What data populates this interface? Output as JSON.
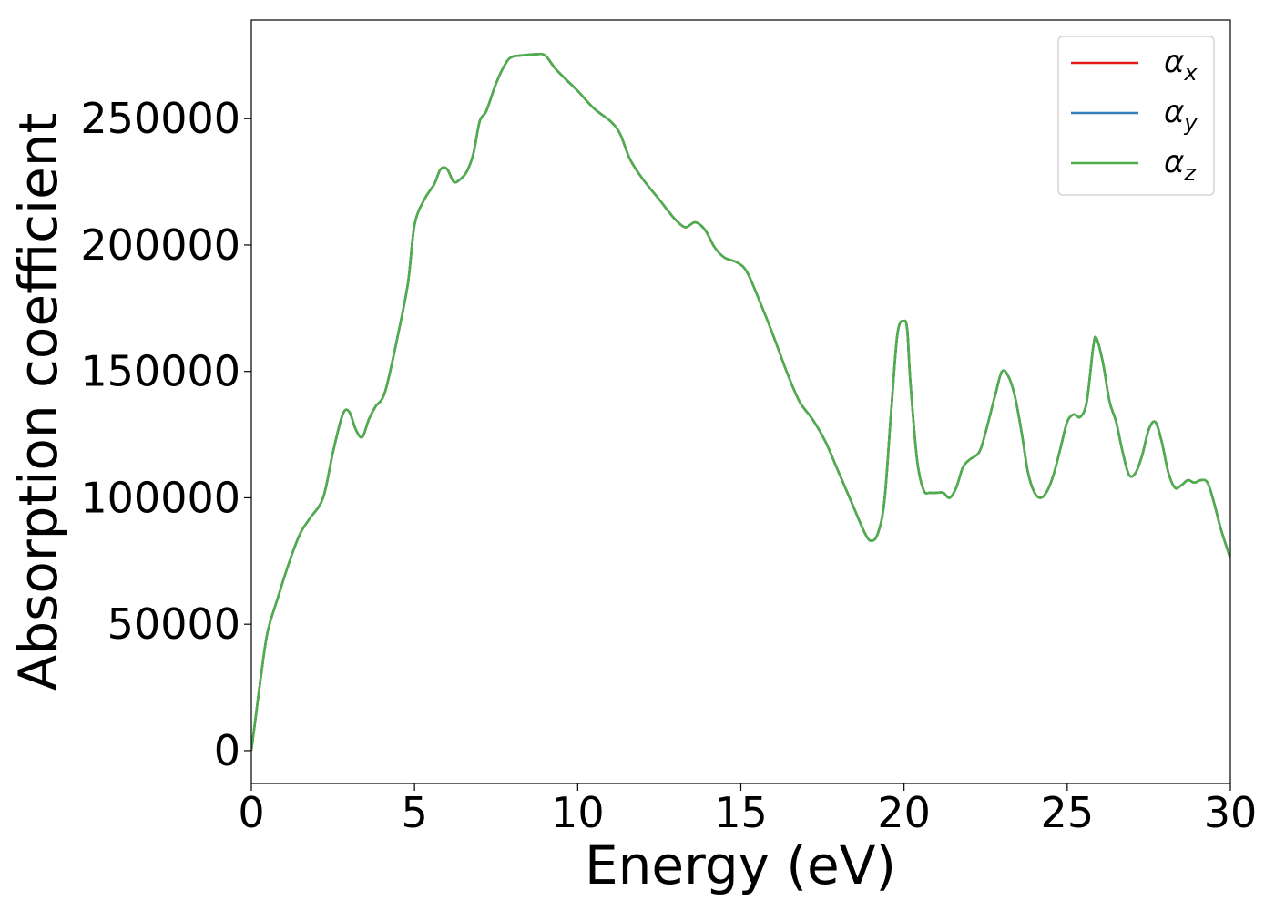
{
  "chart_data": {
    "type": "line",
    "title": "",
    "xlabel": "Energy (eV)",
    "ylabel": "Absorption coefficient",
    "xlim": [
      0,
      30
    ],
    "ylim": [
      -13000,
      289000
    ],
    "xticks": [
      0,
      5,
      10,
      15,
      20,
      25,
      30
    ],
    "xtick_labels": [
      "0",
      "5",
      "10",
      "15",
      "20",
      "25",
      "30"
    ],
    "yticks": [
      0,
      50000,
      100000,
      150000,
      200000,
      250000
    ],
    "ytick_labels": [
      "0",
      "50000",
      "100000",
      "150000",
      "200000",
      "250000"
    ],
    "grid": false,
    "legend_position": "top-right",
    "x": [
      0,
      0.1,
      0.3,
      0.5,
      0.8,
      1.2,
      1.5,
      1.8,
      2.2,
      2.5,
      2.8,
      3.0,
      3.2,
      3.4,
      3.6,
      3.8,
      4.1,
      4.5,
      4.8,
      5.0,
      5.3,
      5.6,
      5.8,
      6.0,
      6.2,
      6.4,
      6.6,
      6.8,
      7.0,
      7.2,
      7.5,
      7.8,
      8.0,
      8.3,
      8.7,
      9.0,
      9.3,
      9.6,
      10.0,
      10.5,
      11.0,
      11.3,
      11.6,
      12.0,
      12.5,
      12.8,
      13.0,
      13.3,
      13.6,
      13.9,
      14.2,
      14.5,
      14.9,
      15.2,
      15.6,
      16.0,
      16.4,
      16.8,
      17.2,
      17.6,
      18.0,
      18.4,
      18.8,
      19.0,
      19.2,
      19.4,
      19.6,
      19.8,
      20.0,
      20.1,
      20.2,
      20.4,
      20.6,
      20.8,
      21.0,
      21.2,
      21.4,
      21.6,
      21.8,
      22.0,
      22.3,
      22.5,
      22.8,
      23.0,
      23.2,
      23.4,
      23.6,
      23.8,
      24.0,
      24.2,
      24.4,
      24.6,
      24.8,
      25.0,
      25.2,
      25.4,
      25.6,
      25.8,
      25.9,
      26.1,
      26.3,
      26.5,
      26.7,
      26.9,
      27.1,
      27.3,
      27.5,
      27.7,
      27.9,
      28.1,
      28.3,
      28.5,
      28.7,
      28.9,
      29.1,
      29.3,
      29.5,
      29.7,
      30.0
    ],
    "series": [
      {
        "name": "αx",
        "label_base": "α",
        "label_sub": "x",
        "color": "#e41a1c",
        "values": [
          0,
          10000,
          30000,
          47000,
          60000,
          76000,
          86000,
          92000,
          100000,
          118000,
          133000,
          134000,
          127000,
          124000,
          131000,
          136000,
          142000,
          165000,
          185000,
          208000,
          218000,
          224000,
          230000,
          230000,
          225000,
          226000,
          229000,
          236000,
          249000,
          253000,
          264000,
          272000,
          274500,
          275000,
          275500,
          275000,
          270000,
          266000,
          261000,
          254000,
          249000,
          244000,
          234000,
          226000,
          218000,
          213000,
          210000,
          207000,
          209000,
          206000,
          199000,
          195000,
          193000,
          189000,
          177000,
          164000,
          150000,
          138000,
          131000,
          122000,
          110000,
          98000,
          86000,
          83000,
          86000,
          99000,
          133000,
          165000,
          170000,
          166000,
          145000,
          115000,
          103000,
          102000,
          102000,
          102000,
          100000,
          104000,
          112000,
          115000,
          118000,
          126000,
          141000,
          150000,
          148000,
          140000,
          126000,
          110000,
          102000,
          100000,
          103000,
          110000,
          120000,
          130000,
          133000,
          132000,
          138000,
          160000,
          163000,
          153000,
          138000,
          130000,
          118000,
          109000,
          110000,
          117000,
          127000,
          130000,
          122000,
          110000,
          104000,
          105000,
          107000,
          106000,
          107000,
          106000,
          98000,
          88000,
          76000
        ]
      },
      {
        "name": "αy",
        "label_base": "α",
        "label_sub": "y",
        "color": "#377eb8",
        "values": [
          0,
          10000,
          30000,
          47000,
          60000,
          76000,
          86000,
          92000,
          100000,
          118000,
          133000,
          134000,
          127000,
          124000,
          131000,
          136000,
          142000,
          165000,
          185000,
          208000,
          218000,
          224000,
          230000,
          230000,
          225000,
          226000,
          229000,
          236000,
          249000,
          253000,
          264000,
          272000,
          274500,
          275000,
          275500,
          275000,
          270000,
          266000,
          261000,
          254000,
          249000,
          244000,
          234000,
          226000,
          218000,
          213000,
          210000,
          207000,
          209000,
          206000,
          199000,
          195000,
          193000,
          189000,
          177000,
          164000,
          150000,
          138000,
          131000,
          122000,
          110000,
          98000,
          86000,
          83000,
          86000,
          99000,
          133000,
          165000,
          170000,
          166000,
          145000,
          115000,
          103000,
          102000,
          102000,
          102000,
          100000,
          104000,
          112000,
          115000,
          118000,
          126000,
          141000,
          150000,
          148000,
          140000,
          126000,
          110000,
          102000,
          100000,
          103000,
          110000,
          120000,
          130000,
          133000,
          132000,
          138000,
          160000,
          163000,
          153000,
          138000,
          130000,
          118000,
          109000,
          110000,
          117000,
          127000,
          130000,
          122000,
          110000,
          104000,
          105000,
          107000,
          106000,
          107000,
          106000,
          98000,
          88000,
          76000
        ]
      },
      {
        "name": "αz",
        "label_base": "α",
        "label_sub": "z",
        "color": "#4daf4a",
        "values": [
          0,
          10000,
          30000,
          47000,
          60000,
          76000,
          86000,
          92000,
          100000,
          118000,
          133000,
          134000,
          127000,
          124000,
          131000,
          136000,
          142000,
          165000,
          185000,
          208000,
          218000,
          224000,
          230000,
          230000,
          225000,
          226000,
          229000,
          236000,
          249000,
          253000,
          264000,
          272000,
          274500,
          275000,
          275500,
          275000,
          270000,
          266000,
          261000,
          254000,
          249000,
          244000,
          234000,
          226000,
          218000,
          213000,
          210000,
          207000,
          209000,
          206000,
          199000,
          195000,
          193000,
          189000,
          177000,
          164000,
          150000,
          138000,
          131000,
          122000,
          110000,
          98000,
          86000,
          83000,
          86000,
          99000,
          133000,
          165000,
          170000,
          166000,
          145000,
          115000,
          103000,
          102000,
          102000,
          102000,
          100000,
          104000,
          112000,
          115000,
          118000,
          126000,
          141000,
          150000,
          148000,
          140000,
          126000,
          110000,
          102000,
          100000,
          103000,
          110000,
          120000,
          130000,
          133000,
          132000,
          138000,
          160000,
          163000,
          153000,
          138000,
          130000,
          118000,
          109000,
          110000,
          117000,
          127000,
          130000,
          122000,
          110000,
          104000,
          105000,
          107000,
          106000,
          107000,
          106000,
          98000,
          88000,
          76000
        ]
      }
    ]
  }
}
